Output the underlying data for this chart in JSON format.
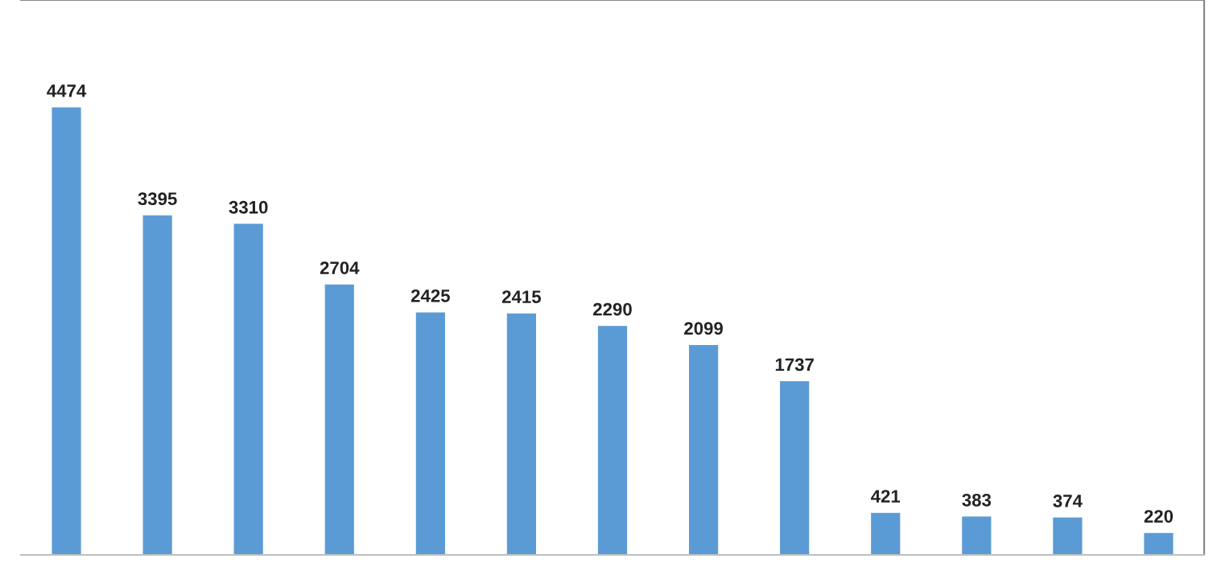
{
  "chart_data": {
    "type": "bar",
    "categories": [
      null,
      null,
      null,
      null,
      null,
      null,
      null,
      null,
      null,
      null,
      null,
      null,
      null
    ],
    "values": [
      4474,
      3395,
      3310,
      2704,
      2425,
      2415,
      2290,
      2099,
      1737,
      421,
      383,
      374,
      220
    ],
    "color": "#5b9bd5",
    "data_labels": true,
    "grid": false,
    "legend": false
  }
}
